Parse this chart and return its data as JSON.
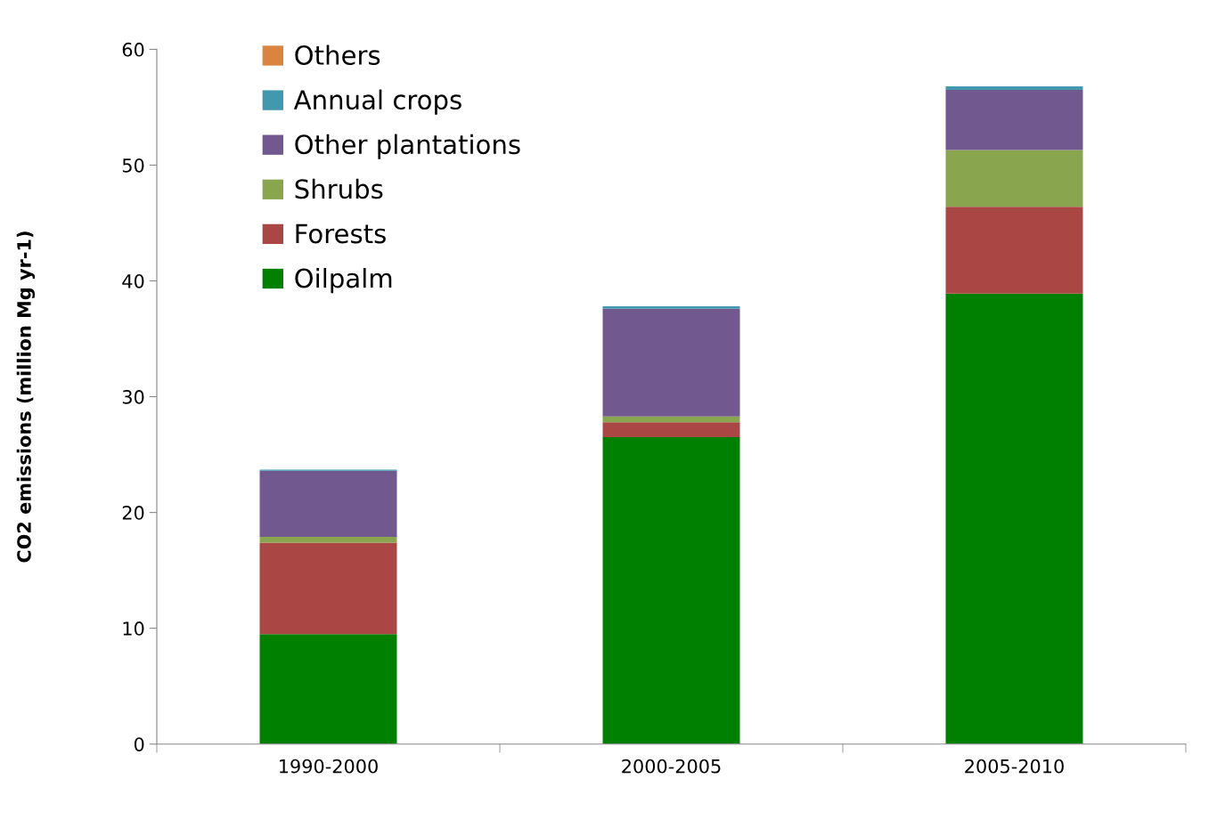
{
  "chart_data": {
    "type": "bar",
    "stacked": true,
    "ylabel": "CO2 emissions (million Mg yr-1)",
    "categories": [
      "1990-2000",
      "2000-2005",
      "2005-2010"
    ],
    "series": [
      {
        "name": "Oilpalm",
        "color": "#008000",
        "values": [
          9.5,
          26.5,
          38.9
        ]
      },
      {
        "name": "Forests",
        "color": "#aa4643",
        "values": [
          7.9,
          1.3,
          7.5
        ]
      },
      {
        "name": "Shrubs",
        "color": "#89a54e",
        "values": [
          0.5,
          0.5,
          4.9
        ]
      },
      {
        "name": "Other plantations",
        "color": "#71588f",
        "values": [
          5.7,
          9.3,
          5.2
        ]
      },
      {
        "name": "Annual crops",
        "color": "#4198af",
        "values": [
          0.1,
          0.2,
          0.3
        ]
      },
      {
        "name": "Others",
        "color": "#db843d",
        "values": [
          0,
          0,
          0
        ]
      }
    ],
    "ylim": [
      0,
      60
    ],
    "yticks": [
      0,
      10,
      20,
      30,
      40,
      50,
      60
    ],
    "grid": false,
    "legend": "top left"
  }
}
